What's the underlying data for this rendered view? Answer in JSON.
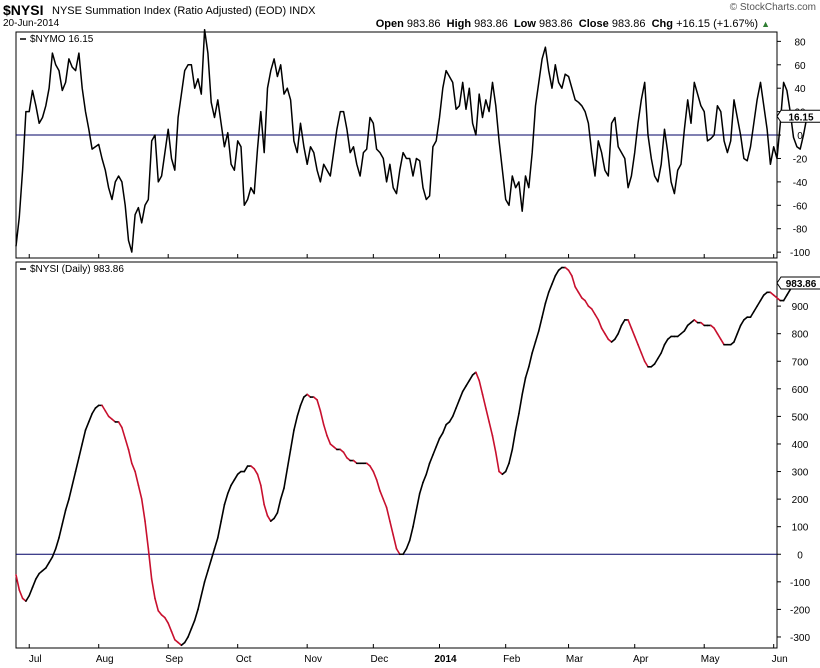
{
  "header": {
    "symbol": "$NYSI",
    "description": "NYSE Summation Index (Ratio Adjusted) (EOD)",
    "exchange": "INDX",
    "date": "20-Jun-2014",
    "credit": "© StockCharts.com",
    "ohlc": [
      {
        "label": "Open",
        "value": "983.86"
      },
      {
        "label": "High",
        "value": "983.86"
      },
      {
        "label": "Low",
        "value": "983.86"
      },
      {
        "label": "Close",
        "value": "983.86"
      },
      {
        "label": "Chg",
        "value": "+16.15 (+1.67%)"
      }
    ],
    "chg_arrow": "up-triangle-icon"
  },
  "chart_data": [
    {
      "type": "line",
      "title": "$NYMO 16.15",
      "last_value_label": "16.15",
      "ylim": [
        -105,
        88
      ],
      "yticks": [
        80,
        60,
        40,
        20,
        0,
        -20,
        -40,
        -60,
        -80,
        -100
      ],
      "zero_line": true,
      "x_range": [
        0,
        230
      ],
      "values": [
        -95,
        -70,
        -30,
        20,
        20,
        38,
        25,
        10,
        15,
        25,
        40,
        70,
        60,
        55,
        38,
        45,
        65,
        58,
        55,
        70,
        40,
        20,
        5,
        -12,
        -10,
        -8,
        -20,
        -30,
        -45,
        -55,
        -40,
        -35,
        -40,
        -60,
        -90,
        -100,
        -68,
        -62,
        -75,
        -60,
        -55,
        -5,
        0,
        -40,
        -35,
        -15,
        5,
        -20,
        -30,
        15,
        35,
        55,
        60,
        60,
        40,
        48,
        35,
        90,
        70,
        28,
        15,
        30,
        10,
        -10,
        2,
        -25,
        -30,
        -5,
        -10,
        -60,
        -55,
        -45,
        -50,
        -12,
        20,
        -15,
        40,
        55,
        65,
        50,
        60,
        35,
        40,
        30,
        -5,
        -15,
        10,
        -10,
        -25,
        -10,
        -15,
        -30,
        -40,
        -25,
        -30,
        -35,
        -15,
        5,
        20,
        20,
        5,
        -15,
        -10,
        -25,
        -35,
        -15,
        -12,
        15,
        10,
        -12,
        -15,
        -20,
        -40,
        -25,
        -45,
        -50,
        -30,
        -15,
        -20,
        -20,
        -35,
        -20,
        -22,
        -45,
        -55,
        -52,
        -10,
        -5,
        15,
        40,
        55,
        50,
        45,
        22,
        25,
        45,
        22,
        40,
        10,
        0,
        35,
        15,
        30,
        20,
        45,
        25,
        -5,
        -30,
        -55,
        -60,
        -35,
        -45,
        -40,
        -65,
        -35,
        -45,
        -15,
        25,
        45,
        65,
        75,
        55,
        40,
        60,
        45,
        40,
        52,
        50,
        40,
        30,
        28,
        25,
        20,
        10,
        -15,
        -35,
        -5,
        -15,
        -30,
        -35,
        10,
        15,
        -10,
        -15,
        -20,
        -45,
        -35,
        -15,
        10,
        30,
        45,
        0,
        -20,
        -35,
        -40,
        -25,
        5,
        -15,
        -40,
        -50,
        -30,
        -25,
        5,
        30,
        10,
        45,
        35,
        25,
        20,
        -5,
        -3,
        0,
        25,
        20,
        -5,
        -15,
        -5,
        30,
        15,
        0,
        -20,
        -22,
        -10,
        10,
        30,
        45,
        25,
        5,
        -25,
        -10,
        -20,
        10,
        45,
        38,
        20,
        -2,
        -10,
        -12,
        0,
        15,
        16
      ]
    },
    {
      "type": "line",
      "title": "$NYSI (Daily) 983.86",
      "last_value_label": "983.86",
      "ylim": [
        -340,
        1060
      ],
      "yticks": [
        900,
        800,
        700,
        600,
        500,
        400,
        300,
        200,
        100,
        0,
        -100,
        -200,
        -300
      ],
      "zero_line": true,
      "x_range": [
        0,
        230
      ],
      "colors": {
        "rising": "#000000",
        "falling": "#c8102e"
      },
      "x_tick_labels": [
        "Jul",
        "Aug",
        "Sep",
        "Oct",
        "Nov",
        "Dec",
        "2014",
        "Feb",
        "Mar",
        "Apr",
        "May",
        "Jun"
      ],
      "x_tick_index": [
        4,
        25,
        46,
        67,
        88,
        108,
        128,
        148,
        167,
        187,
        208,
        229
      ],
      "values": [
        -75,
        -130,
        -160,
        -170,
        -150,
        -120,
        -90,
        -70,
        -60,
        -50,
        -30,
        -10,
        20,
        60,
        110,
        160,
        200,
        250,
        300,
        350,
        400,
        450,
        480,
        510,
        530,
        540,
        540,
        520,
        500,
        490,
        480,
        480,
        460,
        420,
        380,
        330,
        300,
        250,
        200,
        120,
        20,
        -90,
        -160,
        -205,
        -220,
        -230,
        -250,
        -280,
        -310,
        -320,
        -330,
        -320,
        -300,
        -270,
        -240,
        -200,
        -150,
        -100,
        -60,
        -20,
        20,
        60,
        120,
        180,
        220,
        250,
        270,
        290,
        300,
        300,
        320,
        320,
        310,
        290,
        250,
        180,
        140,
        120,
        130,
        150,
        200,
        240,
        310,
        380,
        450,
        500,
        540,
        570,
        580,
        570,
        570,
        560,
        520,
        470,
        430,
        400,
        390,
        380,
        380,
        370,
        350,
        340,
        340,
        330,
        330,
        330,
        330,
        320,
        300,
        270,
        230,
        200,
        170,
        120,
        70,
        20,
        0,
        0,
        20,
        50,
        100,
        160,
        220,
        260,
        290,
        330,
        360,
        390,
        420,
        440,
        470,
        480,
        500,
        530,
        560,
        590,
        610,
        630,
        650,
        660,
        630,
        580,
        530,
        480,
        430,
        370,
        300,
        290,
        300,
        330,
        380,
        450,
        510,
        580,
        640,
        680,
        730,
        770,
        810,
        860,
        910,
        950,
        980,
        1010,
        1030,
        1040,
        1040,
        1030,
        1010,
        970,
        950,
        930,
        920,
        900,
        890,
        870,
        850,
        820,
        800,
        780,
        770,
        780,
        800,
        830,
        850,
        850,
        820,
        790,
        760,
        730,
        700,
        680,
        680,
        690,
        710,
        730,
        760,
        780,
        790,
        790,
        790,
        800,
        810,
        830,
        840,
        850,
        840,
        840,
        830,
        830,
        830,
        820,
        800,
        780,
        760,
        760,
        760,
        770,
        800,
        830,
        850,
        860,
        860,
        880,
        900,
        920,
        940,
        950,
        950,
        940,
        930,
        920,
        920,
        940,
        960,
        983.86
      ]
    }
  ]
}
